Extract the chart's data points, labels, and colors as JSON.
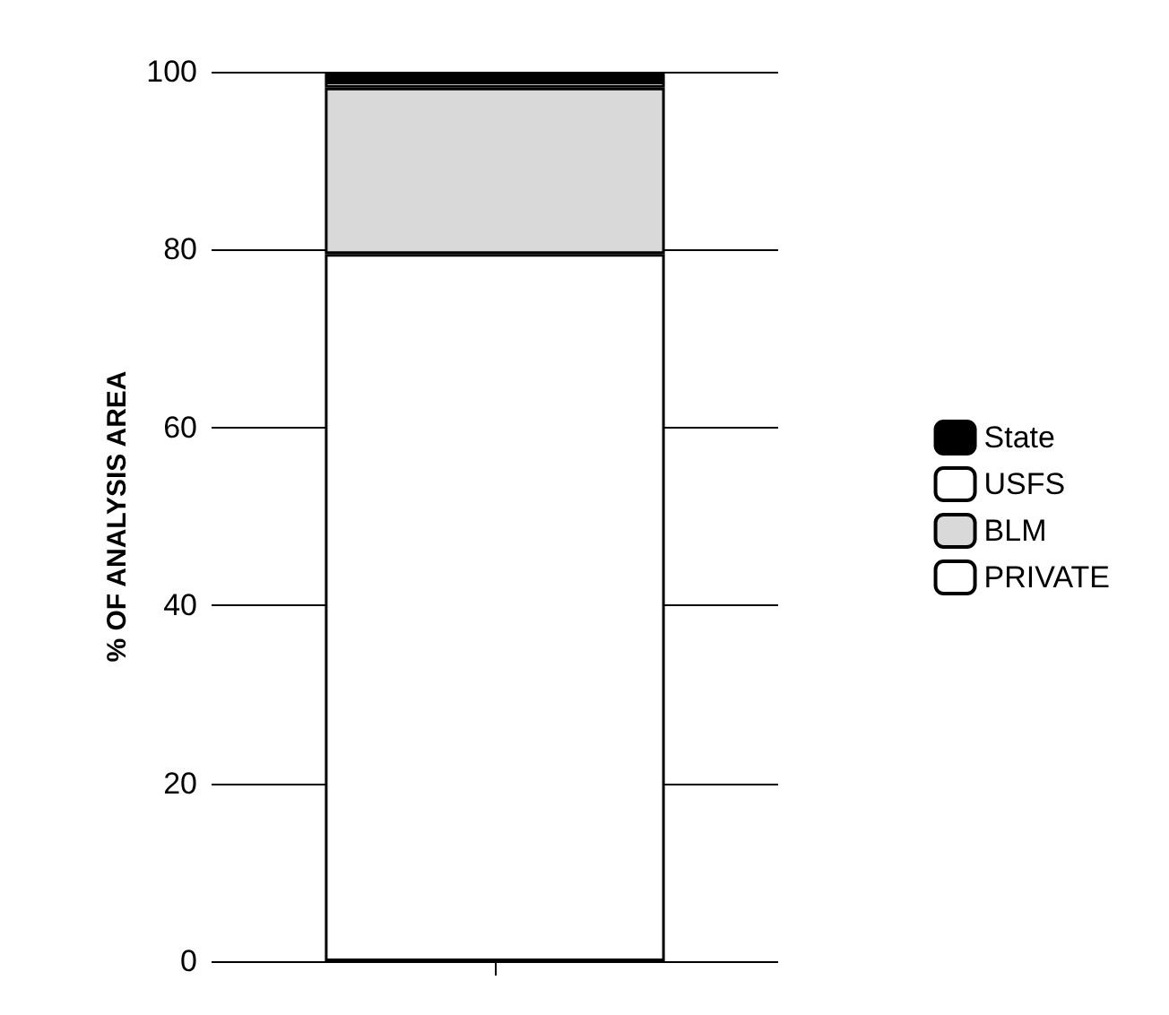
{
  "chart_data": {
    "type": "bar",
    "stacked": true,
    "ylabel": "% OF ANALYSIS AREA",
    "categories": [
      null
    ],
    "series": [
      {
        "name": "PRIVATE",
        "color": "#ffffff",
        "values": [
          79.5
        ]
      },
      {
        "name": "BLM",
        "color": "#d9d9d9",
        "values": [
          18.7
        ]
      },
      {
        "name": "USFS",
        "color": "#ffffff",
        "values": [
          0.7
        ]
      },
      {
        "name": "State",
        "color": "#000000",
        "values": [
          1.1
        ]
      }
    ],
    "ylim": [
      0,
      100
    ],
    "yticks": [
      0,
      20,
      40,
      60,
      80,
      100
    ],
    "grid": "y",
    "legend": "right"
  }
}
